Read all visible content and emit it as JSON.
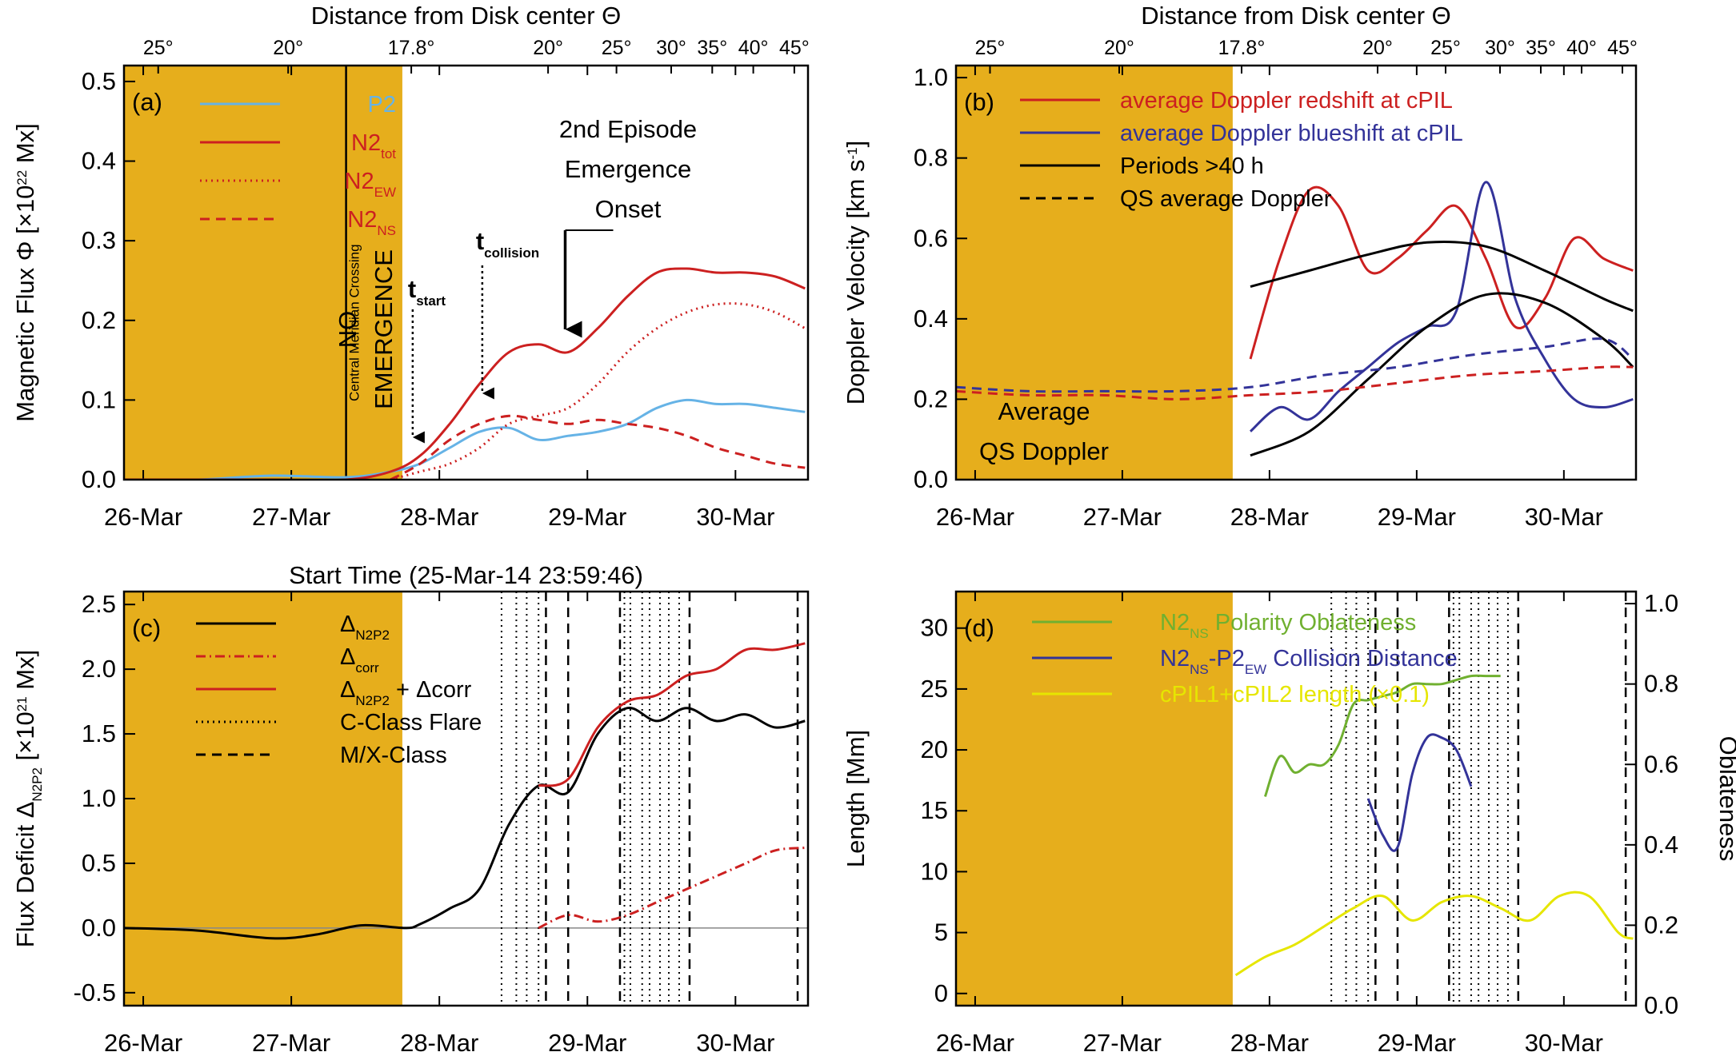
{
  "chart_data": [
    {
      "id": "a",
      "type": "line",
      "panel_label": "(a)",
      "top_axis_title": "Distance from Disk center Θ",
      "top_axis_ticks": [
        "25°",
        "20°",
        "17.8°",
        "20°",
        "25°",
        "30°",
        "35°",
        "40°",
        "45°"
      ],
      "x_ticks": [
        "26-Mar",
        "27-Mar",
        "28-Mar",
        "29-Mar",
        "30-Mar"
      ],
      "ylabel_main": "Magnetic Flux Φ [×10",
      "ylabel_exp": "22",
      "ylabel_end": " Mx]",
      "ylim": [
        0,
        0.52
      ],
      "y_ticks": [
        "0.0",
        "0.1",
        "0.2",
        "0.3",
        "0.4",
        "0.5"
      ],
      "shaded_region": {
        "start_day": 0,
        "end_day": 1.88,
        "color": "#e6ae1c"
      },
      "cmc_day": 1.5,
      "cmc_label": "Central Meridian Crossing",
      "no_emergence_label": [
        "NO",
        "EMERGENCE"
      ],
      "annotations": {
        "t_start": {
          "base": "t",
          "sub": "start",
          "day": 1.95
        },
        "t_collision": {
          "base": "t",
          "sub": "collision",
          "day": 2.42
        },
        "second_episode": [
          "2nd Episode",
          "Emergence",
          "Onset"
        ],
        "second_episode_day": 2.98
      },
      "legend": [
        {
          "main": "P2",
          "sub": "",
          "color": "#66b3e6",
          "dash": "solid"
        },
        {
          "main": "N2",
          "sub": "tot",
          "color": "#cc2020",
          "dash": "solid"
        },
        {
          "main": "N2",
          "sub": "EW",
          "color": "#cc2020",
          "dash": "dotted"
        },
        {
          "main": "N2",
          "sub": "NS",
          "color": "#cc2020",
          "dash": "dashed"
        }
      ],
      "series": [
        {
          "name": "P2",
          "color": "#66b3e6",
          "dash": "solid",
          "x": [
            0,
            0.5,
            1,
            1.5,
            1.8,
            2.0,
            2.2,
            2.4,
            2.6,
            2.8,
            3.0,
            3.2,
            3.4,
            3.6,
            3.8,
            4.0,
            4.2,
            4.4,
            4.6
          ],
          "y": [
            0,
            0,
            0.005,
            0.003,
            0.01,
            0.02,
            0.04,
            0.06,
            0.065,
            0.05,
            0.055,
            0.06,
            0.07,
            0.09,
            0.1,
            0.095,
            0.095,
            0.09,
            0.085
          ]
        },
        {
          "name": "N2_tot",
          "color": "#cc2020",
          "dash": "solid",
          "x": [
            0,
            0.5,
            1,
            1.5,
            1.8,
            2.0,
            2.2,
            2.4,
            2.6,
            2.8,
            3.0,
            3.2,
            3.4,
            3.6,
            3.8,
            4.0,
            4.2,
            4.4,
            4.6
          ],
          "y": [
            0,
            0,
            0,
            0,
            0.01,
            0.03,
            0.07,
            0.12,
            0.16,
            0.17,
            0.16,
            0.19,
            0.23,
            0.26,
            0.265,
            0.26,
            0.26,
            0.255,
            0.24
          ]
        },
        {
          "name": "N2_EW",
          "color": "#cc2020",
          "dash": "dotted",
          "x": [
            1.8,
            2.0,
            2.2,
            2.4,
            2.6,
            2.8,
            3.0,
            3.2,
            3.4,
            3.6,
            3.8,
            4.0,
            4.2,
            4.4,
            4.6
          ],
          "y": [
            0,
            0.01,
            0.02,
            0.04,
            0.07,
            0.08,
            0.09,
            0.12,
            0.16,
            0.19,
            0.21,
            0.22,
            0.22,
            0.21,
            0.19
          ]
        },
        {
          "name": "N2_NS",
          "color": "#cc2020",
          "dash": "dashed",
          "x": [
            1.8,
            2.0,
            2.2,
            2.4,
            2.6,
            2.8,
            3.0,
            3.2,
            3.4,
            3.6,
            3.8,
            4.0,
            4.2,
            4.4,
            4.6
          ],
          "y": [
            0,
            0.02,
            0.05,
            0.07,
            0.08,
            0.075,
            0.07,
            0.075,
            0.07,
            0.065,
            0.055,
            0.04,
            0.03,
            0.02,
            0.015
          ]
        }
      ]
    },
    {
      "id": "b",
      "type": "line",
      "panel_label": "(b)",
      "top_axis_title": "Distance from Disk center Θ",
      "top_axis_ticks": [
        "25°",
        "20°",
        "17.8°",
        "20°",
        "25°",
        "30°",
        "35°",
        "40°",
        "45°"
      ],
      "x_ticks": [
        "26-Mar",
        "27-Mar",
        "28-Mar",
        "29-Mar",
        "30-Mar"
      ],
      "ylabel_main": "Doppler Velocity [km s",
      "ylabel_exp": "-1",
      "ylabel_end": "]",
      "ylim": [
        0,
        1.03
      ],
      "y_ticks": [
        "0.0",
        "0.2",
        "0.4",
        "0.6",
        "0.8",
        "1.0"
      ],
      "shaded_region": {
        "start_day": 0,
        "end_day": 1.88,
        "color": "#e6ae1c"
      },
      "avg_label": [
        "Average",
        "QS Doppler"
      ],
      "legend": [
        {
          "text": "average Doppler redshift at cPIL",
          "color": "#cc2020",
          "text_color": "#cc2020",
          "dash": "solid"
        },
        {
          "text": "average Doppler blueshift at cPIL",
          "color": "#333399",
          "text_color": "#333399",
          "dash": "solid"
        },
        {
          "text": "Periods >40 h",
          "color": "#000000",
          "text_color": "#000000",
          "dash": "solid"
        },
        {
          "text": "QS average Doppler",
          "color": "#000000",
          "text_color": "#000000",
          "dash": "dashed"
        }
      ],
      "series": [
        {
          "name": "redshift",
          "color": "#cc2020",
          "dash": "solid",
          "x": [
            2.0,
            2.2,
            2.4,
            2.6,
            2.8,
            3.0,
            3.2,
            3.4,
            3.6,
            3.8,
            4.0,
            4.2,
            4.4,
            4.6
          ],
          "y": [
            0.3,
            0.55,
            0.72,
            0.68,
            0.52,
            0.55,
            0.62,
            0.68,
            0.55,
            0.38,
            0.45,
            0.6,
            0.55,
            0.52
          ]
        },
        {
          "name": "blueshift",
          "color": "#333399",
          "dash": "solid",
          "x": [
            2.0,
            2.2,
            2.4,
            2.6,
            2.8,
            3.0,
            3.2,
            3.4,
            3.6,
            3.8,
            4.0,
            4.2,
            4.4,
            4.6
          ],
          "y": [
            0.12,
            0.18,
            0.15,
            0.22,
            0.28,
            0.34,
            0.38,
            0.42,
            0.74,
            0.45,
            0.3,
            0.2,
            0.18,
            0.2
          ]
        },
        {
          "name": "period_upper",
          "color": "#000000",
          "dash": "solid",
          "x": [
            2.0,
            2.4,
            2.8,
            3.2,
            3.6,
            4.0,
            4.4,
            4.6
          ],
          "y": [
            0.48,
            0.52,
            0.56,
            0.59,
            0.58,
            0.52,
            0.45,
            0.42
          ]
        },
        {
          "name": "period_lower",
          "color": "#000000",
          "dash": "solid",
          "x": [
            2.0,
            2.4,
            2.8,
            3.2,
            3.6,
            4.0,
            4.4,
            4.6
          ],
          "y": [
            0.06,
            0.12,
            0.25,
            0.38,
            0.46,
            0.44,
            0.35,
            0.28
          ]
        },
        {
          "name": "qs_blue",
          "color": "#333399",
          "dash": "dashed",
          "x": [
            0,
            0.5,
            1,
            1.5,
            2.0,
            2.5,
            3.0,
            3.5,
            4.0,
            4.4,
            4.6
          ],
          "y": [
            0.23,
            0.22,
            0.22,
            0.22,
            0.23,
            0.26,
            0.28,
            0.31,
            0.33,
            0.35,
            0.3
          ]
        },
        {
          "name": "qs_red",
          "color": "#cc2020",
          "dash": "dashed",
          "x": [
            0,
            0.5,
            1,
            1.5,
            2.0,
            2.5,
            3.0,
            3.5,
            4.0,
            4.4,
            4.6
          ],
          "y": [
            0.22,
            0.21,
            0.21,
            0.2,
            0.21,
            0.22,
            0.24,
            0.26,
            0.27,
            0.28,
            0.28
          ]
        }
      ]
    },
    {
      "id": "c",
      "type": "line",
      "panel_label": "(c)",
      "top_title": "Start Time (25-Mar-14 23:59:46)",
      "x_ticks": [
        "26-Mar",
        "27-Mar",
        "28-Mar",
        "29-Mar",
        "30-Mar"
      ],
      "ylabel_main": "Flux Deficit Δ",
      "ylabel_sub": "N2P2",
      "ylabel_mid": " [×10",
      "ylabel_exp": "21",
      "ylabel_end": " Mx]",
      "ylim": [
        -0.6,
        2.6
      ],
      "y_ticks": [
        "-0.5",
        "0.0",
        "0.5",
        "1.0",
        "1.5",
        "2.0",
        "2.5"
      ],
      "shaded_region": {
        "start_day": 0,
        "end_day": 1.88,
        "color": "#e6ae1c"
      },
      "c_flares": [
        2.55,
        2.65,
        2.72,
        2.8,
        3.38,
        3.42,
        3.5,
        3.55,
        3.62,
        3.68,
        3.75
      ],
      "mx_flares": [
        2.85,
        3.0,
        3.35,
        3.82,
        4.55
      ],
      "legend": [
        {
          "main": "Δ",
          "sub": "N2P2",
          "extra": "",
          "color": "#000000",
          "dash": "solid"
        },
        {
          "main": "Δ",
          "sub": "corr",
          "extra": "",
          "color": "#cc2020",
          "dash": "dashdot"
        },
        {
          "main": "Δ",
          "sub": "N2P2",
          "extra": " + Δcorr",
          "color": "#cc2020",
          "dash": "solid"
        },
        {
          "main": "C-Class Flare",
          "sub": "",
          "extra": "",
          "color": "#000000",
          "dash": "dotted"
        },
        {
          "main": "M/X-Class",
          "sub": "",
          "extra": "",
          "color": "#000000",
          "dash": "dashed"
        }
      ],
      "series": [
        {
          "name": "delta_N2P2",
          "color": "#000000",
          "dash": "solid",
          "x": [
            0,
            0.5,
            1.0,
            1.3,
            1.6,
            1.9,
            2.0,
            2.2,
            2.4,
            2.6,
            2.8,
            3.0,
            3.2,
            3.4,
            3.6,
            3.8,
            4.0,
            4.2,
            4.4,
            4.6
          ],
          "y": [
            0,
            -0.02,
            -0.08,
            -0.05,
            0.02,
            0,
            0.03,
            0.15,
            0.3,
            0.8,
            1.1,
            1.05,
            1.5,
            1.7,
            1.6,
            1.7,
            1.6,
            1.65,
            1.55,
            1.6
          ]
        },
        {
          "name": "delta_corr",
          "color": "#cc2020",
          "dash": "dashdot",
          "x": [
            2.8,
            3.0,
            3.2,
            3.4,
            3.6,
            3.8,
            4.0,
            4.2,
            4.4,
            4.6
          ],
          "y": [
            0,
            0.1,
            0.05,
            0.1,
            0.2,
            0.3,
            0.4,
            0.5,
            0.6,
            0.62
          ]
        },
        {
          "name": "delta_sum",
          "color": "#cc2020",
          "dash": "solid",
          "x": [
            2.8,
            3.0,
            3.2,
            3.4,
            3.6,
            3.8,
            4.0,
            4.2,
            4.4,
            4.6
          ],
          "y": [
            1.1,
            1.15,
            1.55,
            1.75,
            1.8,
            1.95,
            2.0,
            2.15,
            2.15,
            2.2
          ]
        }
      ]
    },
    {
      "id": "d",
      "type": "line",
      "panel_label": "(d)",
      "x_ticks": [
        "26-Mar",
        "27-Mar",
        "28-Mar",
        "29-Mar",
        "30-Mar"
      ],
      "ylabel_left": "Length [Mm]",
      "ylabel_right": "Oblateness",
      "ylim_left": [
        -1,
        33
      ],
      "ylim_right": [
        0,
        1.03
      ],
      "y_ticks_left": [
        "0",
        "5",
        "10",
        "15",
        "20",
        "25",
        "30"
      ],
      "y_ticks_right": [
        "0.0",
        "0.2",
        "0.4",
        "0.6",
        "0.8",
        "1.0"
      ],
      "shaded_region": {
        "start_day": 0,
        "end_day": 1.88,
        "color": "#e6ae1c"
      },
      "c_flares": [
        2.55,
        2.65,
        2.72,
        2.8,
        3.38,
        3.42,
        3.5,
        3.55,
        3.62,
        3.68,
        3.75
      ],
      "mx_flares": [
        2.85,
        3.0,
        3.35,
        3.82,
        4.55
      ],
      "legend": [
        {
          "main": "N2",
          "sub": "NS",
          "rest": " Polarity Oblateness",
          "color": "#70b030"
        },
        {
          "main": "N2",
          "sub": "NS",
          "rest": "-P2",
          "sub2": "EW",
          "rest2": " Collision Distance",
          "color": "#333399"
        },
        {
          "main": "cPIL1+cPIL2 length (×0.1)",
          "sub": "",
          "rest": "",
          "color": "#e6e600"
        }
      ],
      "series": [
        {
          "name": "oblateness",
          "axis": "right",
          "color": "#70b030",
          "dash": "solid",
          "x": [
            2.1,
            2.2,
            2.3,
            2.4,
            2.5,
            2.6,
            2.7,
            2.8,
            2.9,
            3.0,
            3.1,
            3.2,
            3.3,
            3.4,
            3.5,
            3.6,
            3.7
          ],
          "y": [
            0.52,
            0.62,
            0.58,
            0.6,
            0.6,
            0.65,
            0.75,
            0.76,
            0.77,
            0.78,
            0.8,
            0.8,
            0.8,
            0.81,
            0.82,
            0.82,
            0.82
          ]
        },
        {
          "name": "collision_distance",
          "axis": "left",
          "color": "#333399",
          "dash": "solid",
          "x": [
            2.8,
            2.9,
            3.0,
            3.1,
            3.2,
            3.3,
            3.4,
            3.5
          ],
          "y": [
            16,
            13,
            12,
            18,
            21,
            21,
            20,
            17
          ]
        },
        {
          "name": "cpil_length",
          "axis": "left",
          "color": "#e6e600",
          "dash": "solid",
          "x": [
            1.9,
            2.1,
            2.3,
            2.5,
            2.7,
            2.9,
            3.1,
            3.3,
            3.5,
            3.7,
            3.9,
            4.1,
            4.3,
            4.5,
            4.6
          ],
          "y": [
            1.5,
            3,
            4,
            5.5,
            7,
            8,
            6,
            7.5,
            8,
            7,
            6,
            8,
            8,
            5,
            4.5
          ]
        }
      ]
    }
  ]
}
